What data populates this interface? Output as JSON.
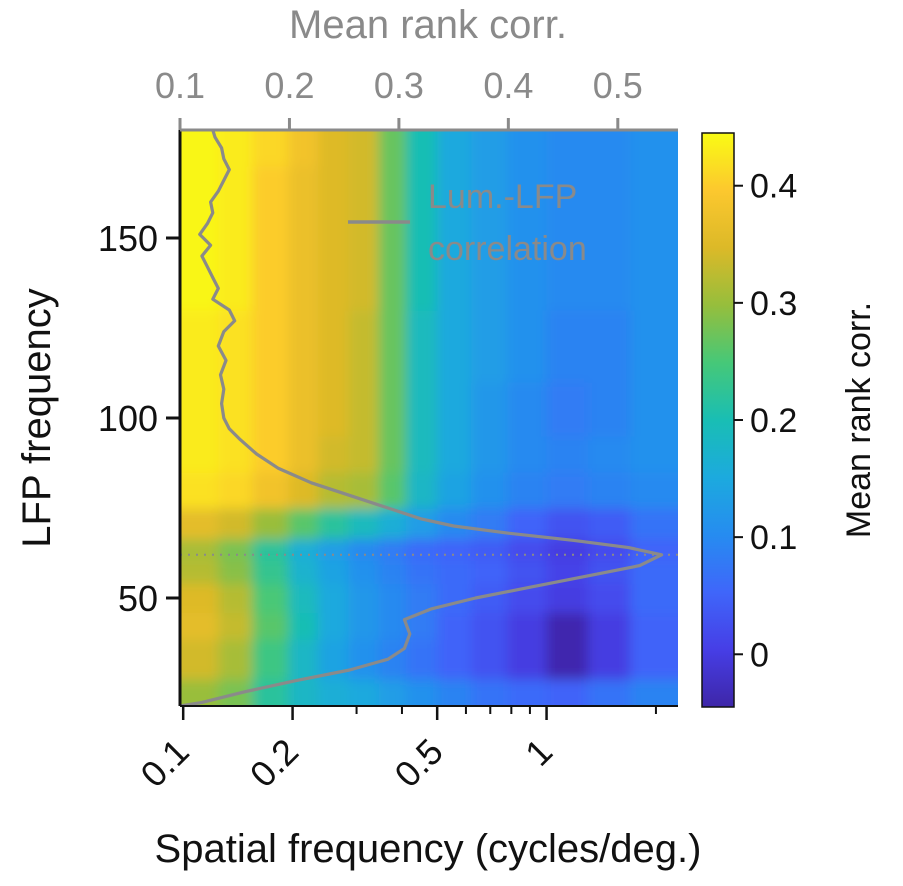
{
  "chart_data": {
    "type": "heatmap",
    "title": "",
    "xlabel": "Spatial frequency (cycles/deg.)",
    "ylabel": "LFP frequency",
    "x_scale": "log",
    "xlim": [
      0.098,
      2.3
    ],
    "ylim": [
      20,
      180
    ],
    "x_ticks": [
      0.1,
      0.2,
      0.5,
      1
    ],
    "x_tick_labels": [
      "0.1",
      "0.2",
      "0.5",
      "1"
    ],
    "y_ticks": [
      50,
      100,
      150
    ],
    "y_tick_labels": [
      "50",
      "100",
      "150"
    ],
    "top_axis": {
      "label": "Mean rank corr.",
      "range": [
        0.1,
        0.555
      ],
      "ticks": [
        0.1,
        0.2,
        0.3,
        0.4,
        0.5
      ],
      "tick_labels": [
        "0.1",
        "0.2",
        "0.3",
        "0.4",
        "0.5"
      ]
    },
    "colorbar": {
      "label": "Mean rank corr.",
      "range": [
        -0.045,
        0.445
      ],
      "ticks": [
        0,
        0.1,
        0.2,
        0.3,
        0.4
      ],
      "tick_labels": [
        "0",
        "0.1",
        "0.2",
        "0.3",
        "0.4"
      ],
      "colormap": "parula"
    },
    "heatmap": {
      "x_bin_edges": [
        0.098,
        0.125,
        0.155,
        0.195,
        0.235,
        0.285,
        0.345,
        0.41,
        0.5,
        0.62,
        0.78,
        1.0,
        1.3,
        1.7,
        2.3
      ],
      "y_centers": [
        20,
        35,
        42,
        50,
        58,
        63,
        70,
        80,
        90,
        100,
        120,
        140,
        160,
        180
      ],
      "values": [
        [
          0.3,
          0.28,
          0.22,
          0.18,
          0.16,
          0.15,
          0.13,
          0.11,
          0.09,
          0.07,
          0.06,
          0.05,
          0.07,
          0.09
        ],
        [
          0.34,
          0.31,
          0.24,
          0.18,
          0.14,
          0.11,
          0.09,
          0.07,
          0.05,
          0.03,
          0.0,
          -0.04,
          0.0,
          0.05
        ],
        [
          0.36,
          0.33,
          0.26,
          0.2,
          0.15,
          0.12,
          0.1,
          0.08,
          0.05,
          0.03,
          0.0,
          -0.04,
          0.0,
          0.05
        ],
        [
          0.35,
          0.32,
          0.25,
          0.19,
          0.15,
          0.12,
          0.1,
          0.08,
          0.06,
          0.04,
          0.02,
          0.0,
          0.02,
          0.06
        ],
        [
          0.32,
          0.29,
          0.23,
          0.17,
          0.14,
          0.11,
          0.09,
          0.07,
          0.06,
          0.05,
          0.03,
          0.01,
          0.03,
          0.06
        ],
        [
          0.31,
          0.28,
          0.22,
          0.16,
          0.13,
          0.1,
          0.08,
          0.06,
          0.05,
          0.04,
          0.02,
          0.0,
          0.02,
          0.05
        ],
        [
          0.36,
          0.34,
          0.3,
          0.26,
          0.22,
          0.19,
          0.16,
          0.13,
          0.1,
          0.08,
          0.05,
          0.03,
          0.04,
          0.07
        ],
        [
          0.42,
          0.41,
          0.38,
          0.35,
          0.32,
          0.31,
          0.26,
          0.18,
          0.14,
          0.11,
          0.09,
          0.08,
          0.09,
          0.1
        ],
        [
          0.43,
          0.42,
          0.4,
          0.37,
          0.34,
          0.33,
          0.27,
          0.19,
          0.15,
          0.12,
          0.1,
          0.09,
          0.1,
          0.11
        ],
        [
          0.43,
          0.42,
          0.4,
          0.37,
          0.35,
          0.33,
          0.27,
          0.19,
          0.15,
          0.12,
          0.1,
          0.08,
          0.09,
          0.11
        ],
        [
          0.43,
          0.42,
          0.4,
          0.37,
          0.35,
          0.33,
          0.27,
          0.19,
          0.15,
          0.13,
          0.11,
          0.09,
          0.09,
          0.11
        ],
        [
          0.44,
          0.43,
          0.4,
          0.37,
          0.35,
          0.34,
          0.27,
          0.2,
          0.15,
          0.13,
          0.11,
          0.1,
          0.1,
          0.11
        ],
        [
          0.44,
          0.43,
          0.4,
          0.37,
          0.35,
          0.34,
          0.27,
          0.2,
          0.15,
          0.13,
          0.11,
          0.1,
          0.1,
          0.11
        ],
        [
          0.44,
          0.43,
          0.41,
          0.38,
          0.35,
          0.34,
          0.27,
          0.2,
          0.15,
          0.13,
          0.11,
          0.1,
          0.1,
          0.11
        ]
      ]
    },
    "series": [
      {
        "name": "Lum.-LFP correlation",
        "axis": "top",
        "color": "#8a8a8a",
        "points": [
          {
            "y": 20,
            "x": 0.1
          },
          {
            "y": 21,
            "x": 0.12
          },
          {
            "y": 24,
            "x": 0.16
          },
          {
            "y": 27,
            "x": 0.205
          },
          {
            "y": 30,
            "x": 0.255
          },
          {
            "y": 33,
            "x": 0.29
          },
          {
            "y": 36,
            "x": 0.305
          },
          {
            "y": 40,
            "x": 0.31
          },
          {
            "y": 44,
            "x": 0.305
          },
          {
            "y": 47,
            "x": 0.33
          },
          {
            "y": 50,
            "x": 0.37
          },
          {
            "y": 53,
            "x": 0.42
          },
          {
            "y": 56,
            "x": 0.47
          },
          {
            "y": 59,
            "x": 0.52
          },
          {
            "y": 62,
            "x": 0.54
          },
          {
            "y": 64,
            "x": 0.51
          },
          {
            "y": 66,
            "x": 0.46
          },
          {
            "y": 68,
            "x": 0.4
          },
          {
            "y": 70,
            "x": 0.35
          },
          {
            "y": 72,
            "x": 0.32
          },
          {
            "y": 75,
            "x": 0.29
          },
          {
            "y": 78,
            "x": 0.26
          },
          {
            "y": 82,
            "x": 0.22
          },
          {
            "y": 86,
            "x": 0.19
          },
          {
            "y": 90,
            "x": 0.17
          },
          {
            "y": 94,
            "x": 0.155
          },
          {
            "y": 97,
            "x": 0.145
          },
          {
            "y": 100,
            "x": 0.14
          },
          {
            "y": 104,
            "x": 0.138
          },
          {
            "y": 108,
            "x": 0.14
          },
          {
            "y": 112,
            "x": 0.137
          },
          {
            "y": 116,
            "x": 0.142
          },
          {
            "y": 120,
            "x": 0.135
          },
          {
            "y": 124,
            "x": 0.14
          },
          {
            "y": 127,
            "x": 0.15
          },
          {
            "y": 130,
            "x": 0.145
          },
          {
            "y": 133,
            "x": 0.13
          },
          {
            "y": 136,
            "x": 0.135
          },
          {
            "y": 139,
            "x": 0.13
          },
          {
            "y": 142,
            "x": 0.125
          },
          {
            "y": 145,
            "x": 0.12
          },
          {
            "y": 148,
            "x": 0.128
          },
          {
            "y": 151,
            "x": 0.118
          },
          {
            "y": 154,
            "x": 0.125
          },
          {
            "y": 157,
            "x": 0.13
          },
          {
            "y": 160,
            "x": 0.128
          },
          {
            "y": 163,
            "x": 0.135
          },
          {
            "y": 166,
            "x": 0.14
          },
          {
            "y": 169,
            "x": 0.145
          },
          {
            "y": 172,
            "x": 0.14
          },
          {
            "y": 175,
            "x": 0.138
          },
          {
            "y": 178,
            "x": 0.132
          },
          {
            "y": 180,
            "x": 0.13
          }
        ]
      }
    ],
    "reference_line": {
      "style": "dotted",
      "orientation": "horizontal",
      "y": 62,
      "color": "#8a8a8a"
    },
    "legend": {
      "entries": [
        "Lum.-LFP",
        "correlation"
      ],
      "placement": "top-center, inside plot"
    }
  }
}
